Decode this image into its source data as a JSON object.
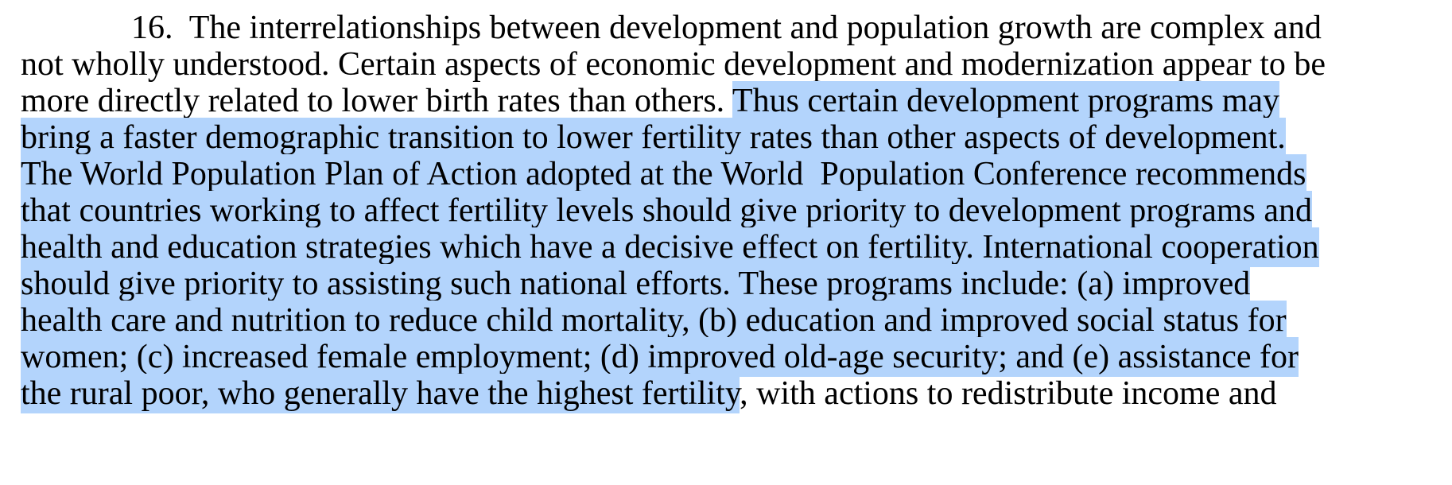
{
  "document": {
    "paragraph_number": "16.",
    "lines": [
      {
        "plain": "The interrelationships between development and population growth are complex and",
        "selected": ""
      },
      {
        "plain": "not wholly understood. Certain aspects of economic development and modernization appear to be",
        "selected": ""
      },
      {
        "plain": "more directly related to lower birth rates than others. ",
        "selected": "Thus certain development programs may"
      },
      {
        "plain": "",
        "selected": "bring a faster demographic transition to lower fertility rates than other aspects of development."
      },
      {
        "plain": "",
        "selected": "The World Population Plan of Action adopted at the World  Population Conference recommends"
      },
      {
        "plain": "",
        "selected": "that countries working to affect fertility levels should give priority to development programs and"
      },
      {
        "plain": "",
        "selected": "health and education strategies which have a decisive effect on fertility. International cooperation"
      },
      {
        "plain": "",
        "selected": "should give priority to assisting such national efforts. These programs include: (a) improved"
      },
      {
        "plain": "",
        "selected": "health care and nutrition to reduce child mortality, (b) education and improved social status for"
      },
      {
        "plain": "",
        "selected": "women; (c) increased female employment; (d) improved old-age security; and (e) assistance for"
      },
      {
        "plain": "",
        "selected": "the rural poor, who generally have the highest fertility",
        "after": ", with actions to redistribute income and"
      }
    ]
  },
  "colors": {
    "selection_highlight": "#b3d4fc",
    "text": "#000000",
    "page_background": "#ffffff"
  }
}
